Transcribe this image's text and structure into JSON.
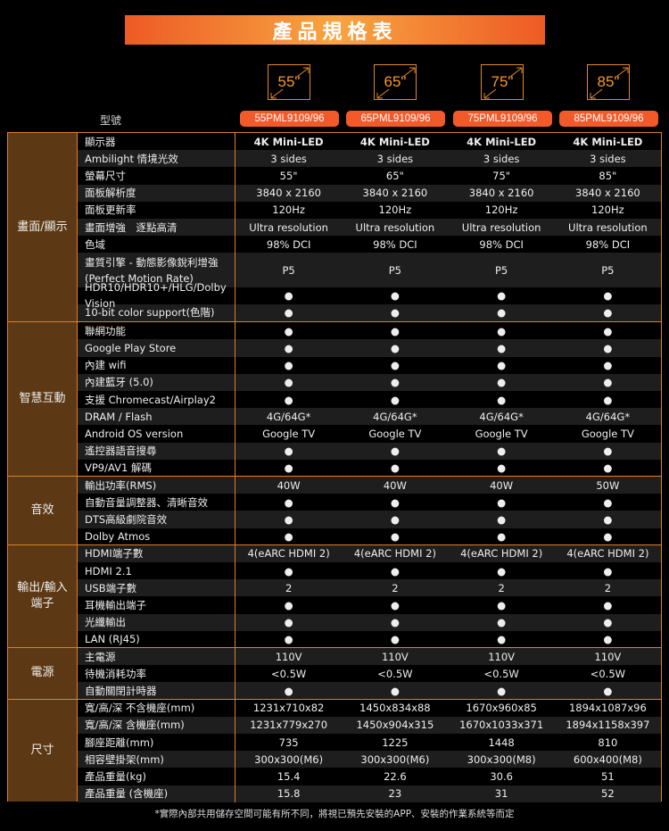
{
  "title": "產品規格表",
  "sizes": [
    "55\"",
    "65\"",
    "75\"",
    "85\""
  ],
  "model_label": "型號",
  "models": [
    "55PML9109/96",
    "65PML9109/96",
    "75PML9109/96",
    "85PML9109/96"
  ],
  "accent": "#f25a2a",
  "groups": [
    {
      "name": "畫面/顯示",
      "rows": [
        {
          "label": "顯示器",
          "values": [
            "4K Mini-LED",
            "4K Mini-LED",
            "4K Mini-LED",
            "4K Mini-LED"
          ],
          "bold": true
        },
        {
          "label": "Ambilight 情境光效",
          "values": [
            "3 sides",
            "3 sides",
            "3 sides",
            "3 sides"
          ]
        },
        {
          "label": "螢幕尺寸",
          "values": [
            "55\"",
            "65\"",
            "75\"",
            "85\""
          ]
        },
        {
          "label": "面板解析度",
          "values": [
            "3840 x 2160",
            "3840 x 2160",
            "3840 x 2160",
            "3840 x 2160"
          ]
        },
        {
          "label": "面板更新率",
          "values": [
            "120Hz",
            "120Hz",
            "120Hz",
            "120Hz"
          ]
        },
        {
          "label": "畫面增強　逐點高清",
          "values": [
            "Ultra resolution",
            "Ultra resolution",
            "Ultra resolution",
            "Ultra resolution"
          ]
        },
        {
          "label": "色域",
          "values": [
            "98% DCI",
            "98% DCI",
            "98% DCI",
            "98% DCI"
          ]
        },
        {
          "label": "畫質引擎 - 動態影像銳利增強",
          "label2": "(Perfect Motion Rate)",
          "values": [
            "P5",
            "P5",
            "P5",
            "P5"
          ]
        },
        {
          "label": "HDR10/HDR10+/HLG/Dolby Vision",
          "values": [
            "●",
            "●",
            "●",
            "●"
          ]
        },
        {
          "label": "10-bit color support(色階)",
          "values": [
            "●",
            "●",
            "●",
            "●"
          ]
        }
      ]
    },
    {
      "name": "智慧互動",
      "rows": [
        {
          "label": "聯網功能",
          "values": [
            "●",
            "●",
            "●",
            "●"
          ]
        },
        {
          "label": "Google Play  Store",
          "values": [
            "●",
            "●",
            "●",
            "●"
          ]
        },
        {
          "label": "內建 wifi",
          "values": [
            "●",
            "●",
            "●",
            "●"
          ]
        },
        {
          "label": "內建藍牙 (5.0)",
          "values": [
            "●",
            "●",
            "●",
            "●"
          ]
        },
        {
          "label": "支援 Chromecast/Airplay2",
          "values": [
            "●",
            "●",
            "●",
            "●"
          ]
        },
        {
          "label": "DRAM / Flash",
          "values": [
            "4G/64G*",
            "4G/64G*",
            "4G/64G*",
            "4G/64G*"
          ]
        },
        {
          "label": "Android OS version",
          "values": [
            "Google TV",
            "Google TV",
            "Google TV",
            "Google TV"
          ]
        },
        {
          "label": "遙控器語音搜尋",
          "values": [
            "●",
            "●",
            "●",
            "●"
          ]
        },
        {
          "label": "VP9/AV1 解碼",
          "values": [
            "●",
            "●",
            "●",
            "●"
          ]
        }
      ]
    },
    {
      "name": "音效",
      "rows": [
        {
          "label": "輸出功率(RMS)",
          "values": [
            "40W",
            "40W",
            "40W",
            "50W"
          ]
        },
        {
          "label": "自動音量調整器、清晰音效",
          "values": [
            "●",
            "●",
            "●",
            "●"
          ]
        },
        {
          "label": "DTS高級劇院音效",
          "values": [
            "●",
            "●",
            "●",
            "●"
          ]
        },
        {
          "label": "Dolby Atmos",
          "values": [
            "●",
            "●",
            "●",
            "●"
          ]
        }
      ]
    },
    {
      "name": "輸出/輸入",
      "name2": "端子",
      "rows": [
        {
          "label": "HDMI端子數",
          "values": [
            "4(eARC HDMI 2)",
            "4(eARC HDMI 2)",
            "4(eARC HDMI 2)",
            "4(eARC HDMI 2)"
          ]
        },
        {
          "label": "HDMI 2.1",
          "values": [
            "●",
            "●",
            "●",
            "●"
          ]
        },
        {
          "label": "USB端子數",
          "values": [
            "2",
            "2",
            "2",
            "2"
          ]
        },
        {
          "label": "耳機輸出端子",
          "values": [
            "●",
            "●",
            "●",
            "●"
          ]
        },
        {
          "label": "光纖輸出",
          "values": [
            "●",
            "●",
            "●",
            "●"
          ]
        },
        {
          "label": "LAN (RJ45)",
          "values": [
            "●",
            "●",
            "●",
            "●"
          ]
        }
      ]
    },
    {
      "name": "電源",
      "rows": [
        {
          "label": "主電源",
          "values": [
            "110V",
            "110V",
            "110V",
            "110V"
          ]
        },
        {
          "label": "待機消耗功率",
          "values": [
            "<0.5W",
            "<0.5W",
            "<0.5W",
            "<0.5W"
          ]
        },
        {
          "label": "自動關閉計時器",
          "values": [
            "●",
            "●",
            "●",
            "●"
          ]
        }
      ]
    },
    {
      "name": "尺寸",
      "rows": [
        {
          "label": "寬/高/深  不含機座(mm)",
          "values": [
            "1231x710x82",
            "1450x834x88",
            "1670x960x85",
            "1894x1087x96"
          ]
        },
        {
          "label": "寬/高/深  含機座(mm)",
          "values": [
            "1231x779x270",
            "1450x904x315",
            "1670x1033x371",
            "1894x1158x397"
          ]
        },
        {
          "label": "腳座距離(mm)",
          "values": [
            "735",
            "1225",
            "1448",
            "810"
          ]
        },
        {
          "label": "相容壁掛架(mm)",
          "values": [
            "300x300(M6)",
            "300x300(M6)",
            "300x300(M8)",
            "600x400(M8)"
          ]
        },
        {
          "label": "產品重量(kg)",
          "values": [
            "15.4",
            "22.6",
            "30.6",
            "51"
          ]
        },
        {
          "label": "產品重量 (含機座)",
          "values": [
            "15.8",
            "23",
            "31",
            "52"
          ]
        }
      ]
    }
  ],
  "footnote": "*實際內部共用儲存空間可能有所不同，將視已預先安裝的APP、安裝的作業系統等而定"
}
